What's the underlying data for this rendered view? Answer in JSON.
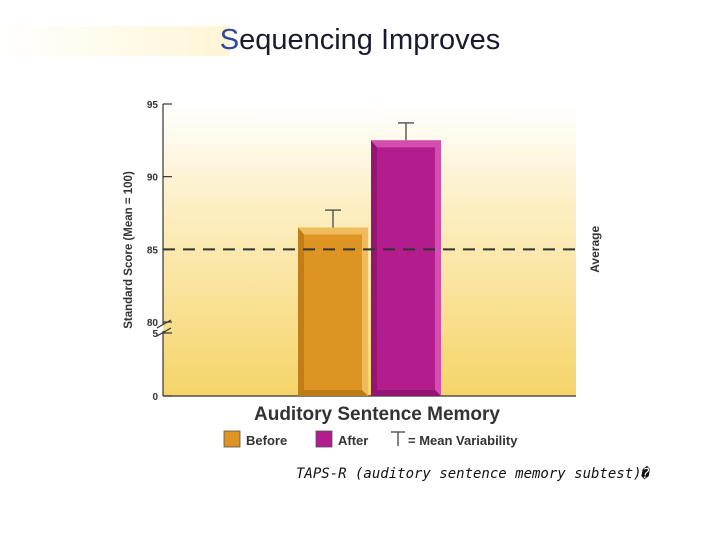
{
  "slide": {
    "title": "Sequencing Improves",
    "footnote": "TAPS-R (auditory sentence memory subtest)�"
  },
  "chart_data": {
    "type": "bar",
    "xlabel": "Auditory Sentence Memory",
    "ylabel": "Standard Score (Mean = 100)",
    "y_ticks_upper": [
      80,
      85,
      90,
      95
    ],
    "y_ticks_lower": [
      0,
      5
    ],
    "axis_break": "between 5 and 80",
    "ylim": [
      0,
      95
    ],
    "grid": false,
    "series": [
      {
        "name": "Before",
        "value": 86.5,
        "error": 1.2,
        "color": "#dd9422"
      },
      {
        "name": "After",
        "value": 92.5,
        "error": 1.2,
        "color": "#b21c8c"
      }
    ],
    "reference_line": {
      "label": "Average",
      "value": 85
    },
    "legend": {
      "placement": "bottom",
      "entries": [
        "Before",
        "After"
      ],
      "error_label": "= Mean Variability"
    }
  }
}
